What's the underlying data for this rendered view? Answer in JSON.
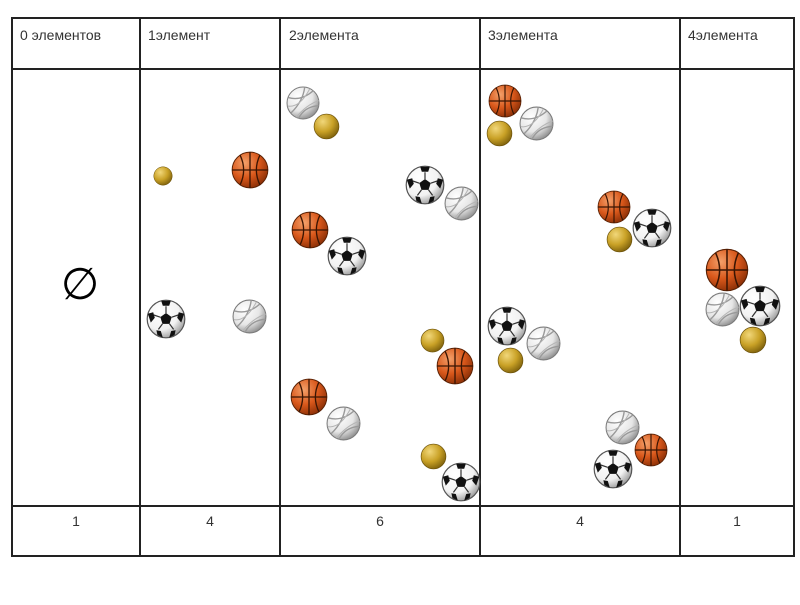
{
  "table": {
    "headers": [
      "0 элементов",
      "1элемент",
      "2элемента",
      "3элемента",
      "4элемента"
    ],
    "counts": [
      "1",
      "4",
      "6",
      "4",
      "1"
    ],
    "empty_symbol": "∅"
  },
  "colors": {
    "basketball": "#d9581b",
    "tennis": "#c9a126",
    "volleyball": "#e9e9e9",
    "soccer": "#ffffff",
    "grid": "#222222"
  }
}
